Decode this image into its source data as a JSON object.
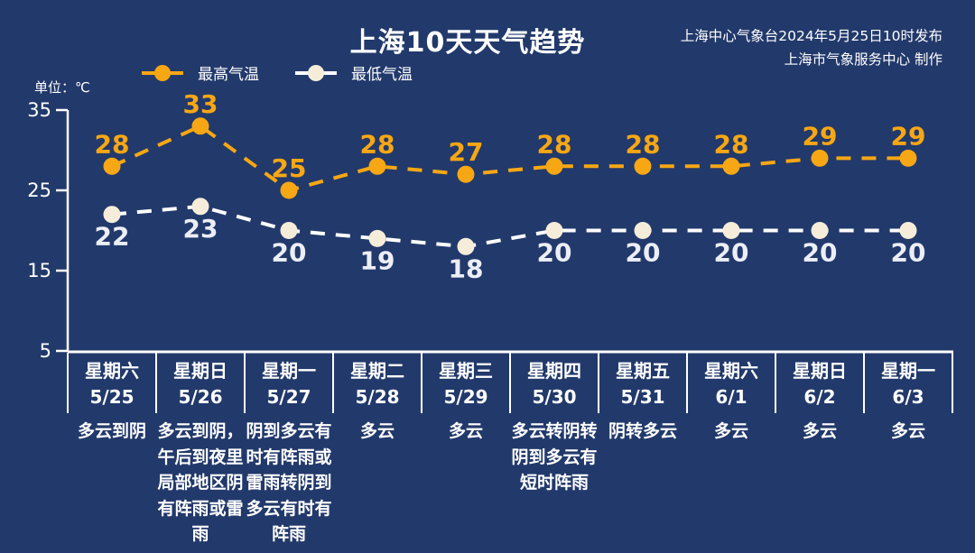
{
  "header": {
    "title": "上海10天天气趋势",
    "source_line1": "上海中心气象台2024年5月25日10时发布",
    "source_line2": "上海市气象服务中心 制作"
  },
  "legend": {
    "high_label": "最高气温",
    "low_label": "最低气温"
  },
  "axis": {
    "unit_label": "单位：℃",
    "ticks": [
      35,
      25,
      15,
      5
    ]
  },
  "colors": {
    "background": "#22396B",
    "text": "#FFFFFF",
    "high": "#F7A714",
    "low_line": "#FFFFFF",
    "low_dot": "#F5EDDA",
    "low_label": "#ECEEF6"
  },
  "chart_data": {
    "type": "line",
    "title": "上海10天天气趋势",
    "ylabel": "℃",
    "ylim": [
      5,
      35
    ],
    "yticks": [
      5,
      15,
      25,
      35
    ],
    "grid": false,
    "legend_position": "top-left",
    "line_style": "dashed",
    "categories": [
      "5/25",
      "5/26",
      "5/27",
      "5/28",
      "5/29",
      "5/30",
      "5/31",
      "6/1",
      "6/2",
      "6/3"
    ],
    "series": [
      {
        "name": "最高气温",
        "color": "#F7A714",
        "dot_color": "#F7A714",
        "label_color": "#F7A714",
        "label_side": "above",
        "values": [
          28,
          33,
          25,
          28,
          27,
          28,
          28,
          28,
          29,
          29
        ]
      },
      {
        "name": "最低气温",
        "color": "#FFFFFF",
        "dot_color": "#F5EDDA",
        "label_color": "#ECEEF6",
        "label_side": "below",
        "values": [
          22,
          23,
          20,
          19,
          18,
          20,
          20,
          20,
          20,
          20
        ]
      }
    ]
  },
  "days": [
    {
      "weekday": "星期六",
      "date": "5/25",
      "weather": "多云到阴"
    },
    {
      "weekday": "星期日",
      "date": "5/26",
      "weather": "多云到阴，午后到夜里局部地区阴有阵雨或雷雨"
    },
    {
      "weekday": "星期一",
      "date": "5/27",
      "weather": "阴到多云有时有阵雨或雷雨转阴到多云有时有阵雨"
    },
    {
      "weekday": "星期二",
      "date": "5/28",
      "weather": "多云"
    },
    {
      "weekday": "星期三",
      "date": "5/29",
      "weather": "多云"
    },
    {
      "weekday": "星期四",
      "date": "5/30",
      "weather": "多云转阴转阴到多云有短时阵雨"
    },
    {
      "weekday": "星期五",
      "date": "5/31",
      "weather": "阴转多云"
    },
    {
      "weekday": "星期六",
      "date": "6/1",
      "weather": "多云"
    },
    {
      "weekday": "星期日",
      "date": "6/2",
      "weather": "多云"
    },
    {
      "weekday": "星期一",
      "date": "6/3",
      "weather": "多云"
    }
  ]
}
